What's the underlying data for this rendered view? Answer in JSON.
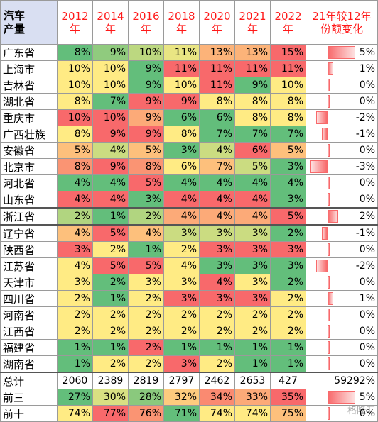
{
  "chart_data": {
    "type": "table",
    "corner_label": "汽车\n产量",
    "columns": [
      "2012\n年",
      "2014\n年",
      "2016\n年",
      "2018\n年",
      "2020\n年",
      "2021\n年",
      "2022\n年",
      "21年较12年\n份额变化"
    ],
    "rows": [
      {
        "province": "广东省",
        "values": [
          "8%",
          "9%",
          "10%",
          "11%",
          "13%",
          "13%",
          "15%"
        ],
        "change": "5%",
        "change_value": 5
      },
      {
        "province": "上海市",
        "values": [
          "10%",
          "10%",
          "9%",
          "11%",
          "11%",
          "11%",
          "11%"
        ],
        "change": "1%",
        "change_value": 1
      },
      {
        "province": "吉林省",
        "values": [
          "10%",
          "10%",
          "9%",
          "10%",
          "11%",
          "9%",
          "10%"
        ],
        "change": "0%",
        "change_value": 0
      },
      {
        "province": "湖北省",
        "values": [
          "8%",
          "7%",
          "9%",
          "9%",
          "8%",
          "8%",
          "8%"
        ],
        "change": "0%",
        "change_value": 0
      },
      {
        "province": "重庆市",
        "values": [
          "10%",
          "10%",
          "9%",
          "6%",
          "6%",
          "8%",
          "8%"
        ],
        "change": "-2%",
        "change_value": -2
      },
      {
        "province": "广西壮族",
        "values": [
          "8%",
          "9%",
          "9%",
          "8%",
          "7%",
          "7%",
          "7%"
        ],
        "change": "-1%",
        "change_value": -1
      },
      {
        "province": "安徽省",
        "values": [
          "5%",
          "4%",
          "5%",
          "3%",
          "4%",
          "6%",
          "5%"
        ],
        "change": "0%",
        "change_value": 0
      },
      {
        "province": "北京市",
        "values": [
          "8%",
          "9%",
          "8%",
          "6%",
          "7%",
          "5%",
          "3%"
        ],
        "change": "-3%",
        "change_value": -3
      },
      {
        "province": "河北省",
        "values": [
          "4%",
          "4%",
          "5%",
          "4%",
          "4%",
          "4%",
          "4%"
        ],
        "change": "0%",
        "change_value": 0
      },
      {
        "province": "山东省",
        "values": [
          "4%",
          "4%",
          "3%",
          "4%",
          "4%",
          "4%",
          "3%"
        ],
        "change": "0%",
        "change_value": 0
      },
      {
        "province": "浙江省",
        "values": [
          "2%",
          "1%",
          "2%",
          "4%",
          "4%",
          "4%",
          "5%"
        ],
        "change": "2%",
        "change_value": 2
      },
      {
        "province": "辽宁省",
        "values": [
          "4%",
          "5%",
          "4%",
          "3%",
          "3%",
          "3%",
          "2%"
        ],
        "change": "-1%",
        "change_value": -1
      },
      {
        "province": "陕西省",
        "values": [
          "3%",
          "2%",
          "1%",
          "2%",
          "3%",
          "3%",
          "3%"
        ],
        "change": "0%",
        "change_value": 0
      },
      {
        "province": "江苏省",
        "values": [
          "4%",
          "5%",
          "5%",
          "4%",
          "3%",
          "3%",
          "3%"
        ],
        "change": "-2%",
        "change_value": -2
      },
      {
        "province": "天津市",
        "values": [
          "3%",
          "2%",
          "3%",
          "3%",
          "4%",
          "3%",
          "2%"
        ],
        "change": "0%",
        "change_value": 0
      },
      {
        "province": "四川省",
        "values": [
          "2%",
          "1%",
          "2%",
          "3%",
          "3%",
          "3%",
          "2%"
        ],
        "change": "1%",
        "change_value": 1
      },
      {
        "province": "河南省",
        "values": [
          "2%",
          "2%",
          "2%",
          "2%",
          "2%",
          "2%",
          "2%"
        ],
        "change": "0%",
        "change_value": 0
      },
      {
        "province": "江西省",
        "values": [
          "2%",
          "2%",
          "2%",
          "2%",
          "2%",
          "2%",
          "2%"
        ],
        "change": "0%",
        "change_value": 0
      },
      {
        "province": "福建省",
        "values": [
          "1%",
          "1%",
          "2%",
          "1%",
          "1%",
          "1%",
          "1%"
        ],
        "change": "0%",
        "change_value": 0
      },
      {
        "province": "湖南省",
        "values": [
          "1%",
          "2%",
          "2%",
          "3%",
          "2%",
          "1%",
          "1%"
        ],
        "change": "0%",
        "change_value": 0
      }
    ],
    "total": {
      "label": "总计",
      "values": [
        "2060",
        "2389",
        "2819",
        "2797",
        "2462",
        "2653",
        "427"
      ],
      "change": "59292%"
    },
    "top3": {
      "label": "前三",
      "values": [
        "27%",
        "30%",
        "28%",
        "32%",
        "34%",
        "33%",
        "35%"
      ],
      "change": "5%",
      "change_value": 5
    },
    "top10": {
      "label": "前十",
      "values": [
        "74%",
        "77%",
        "76%",
        "71%",
        "74%",
        "74%",
        "75%"
      ],
      "change": "0%",
      "change_value": 0
    },
    "change_scale": [
      -3,
      5
    ],
    "colors": {
      "header_corner": "#d9dff2",
      "header_text": "#ff1a1a",
      "high": "#f8696b",
      "mid": "#ffeb84",
      "low": "#63be7b",
      "bar": "#f8696b"
    }
  },
  "watermark": "格隆汇"
}
